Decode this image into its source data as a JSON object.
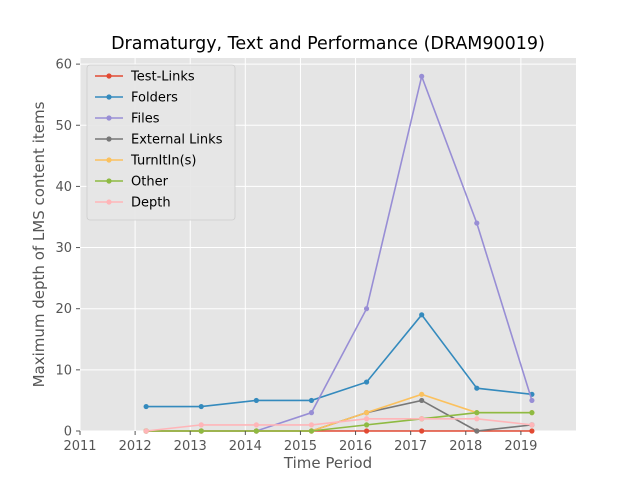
{
  "chart_data": {
    "type": "line",
    "title": "Dramaturgy, Text and Performance (DRAM90019)",
    "xlabel": "Time Period",
    "ylabel": "Maximum depth of LMS content items",
    "x_ticks": [
      "2011",
      "2012",
      "2013",
      "2014",
      "2015",
      "2016",
      "2017",
      "2018",
      "2019"
    ],
    "y_ticks": [
      "0",
      "10",
      "20",
      "30",
      "40",
      "50",
      "60"
    ],
    "xlim": [
      2011,
      2020
    ],
    "ylim": [
      0,
      61
    ],
    "x": [
      2012.2,
      2013.2,
      2014.2,
      2015.2,
      2016.2,
      2017.2,
      2018.2,
      2019.2
    ],
    "grid": true,
    "background": "#e5e5e5",
    "legend_position": "upper-left",
    "series": [
      {
        "name": "Test-Links",
        "color": "#e24a33",
        "values": [
          0,
          0,
          0,
          0,
          0,
          0,
          0,
          0
        ]
      },
      {
        "name": "Folders",
        "color": "#348abd",
        "values": [
          4,
          4,
          5,
          5,
          8,
          19,
          7,
          6
        ]
      },
      {
        "name": "Files",
        "color": "#988ed5",
        "values": [
          0,
          0,
          0,
          3,
          20,
          58,
          34,
          5
        ]
      },
      {
        "name": "External Links",
        "color": "#777777",
        "values": [
          0,
          0,
          0,
          0,
          3,
          5,
          0,
          1
        ]
      },
      {
        "name": "TurnItIn(s)",
        "color": "#fbc15e",
        "values": [
          0,
          0,
          0,
          0,
          3,
          6,
          3,
          3
        ]
      },
      {
        "name": "Other",
        "color": "#8eba42",
        "values": [
          0,
          0,
          0,
          0,
          1,
          2,
          3,
          3
        ]
      },
      {
        "name": "Depth",
        "color": "#ffb5b8",
        "values": [
          0,
          1,
          1,
          1,
          2,
          2,
          2,
          1
        ]
      }
    ]
  }
}
